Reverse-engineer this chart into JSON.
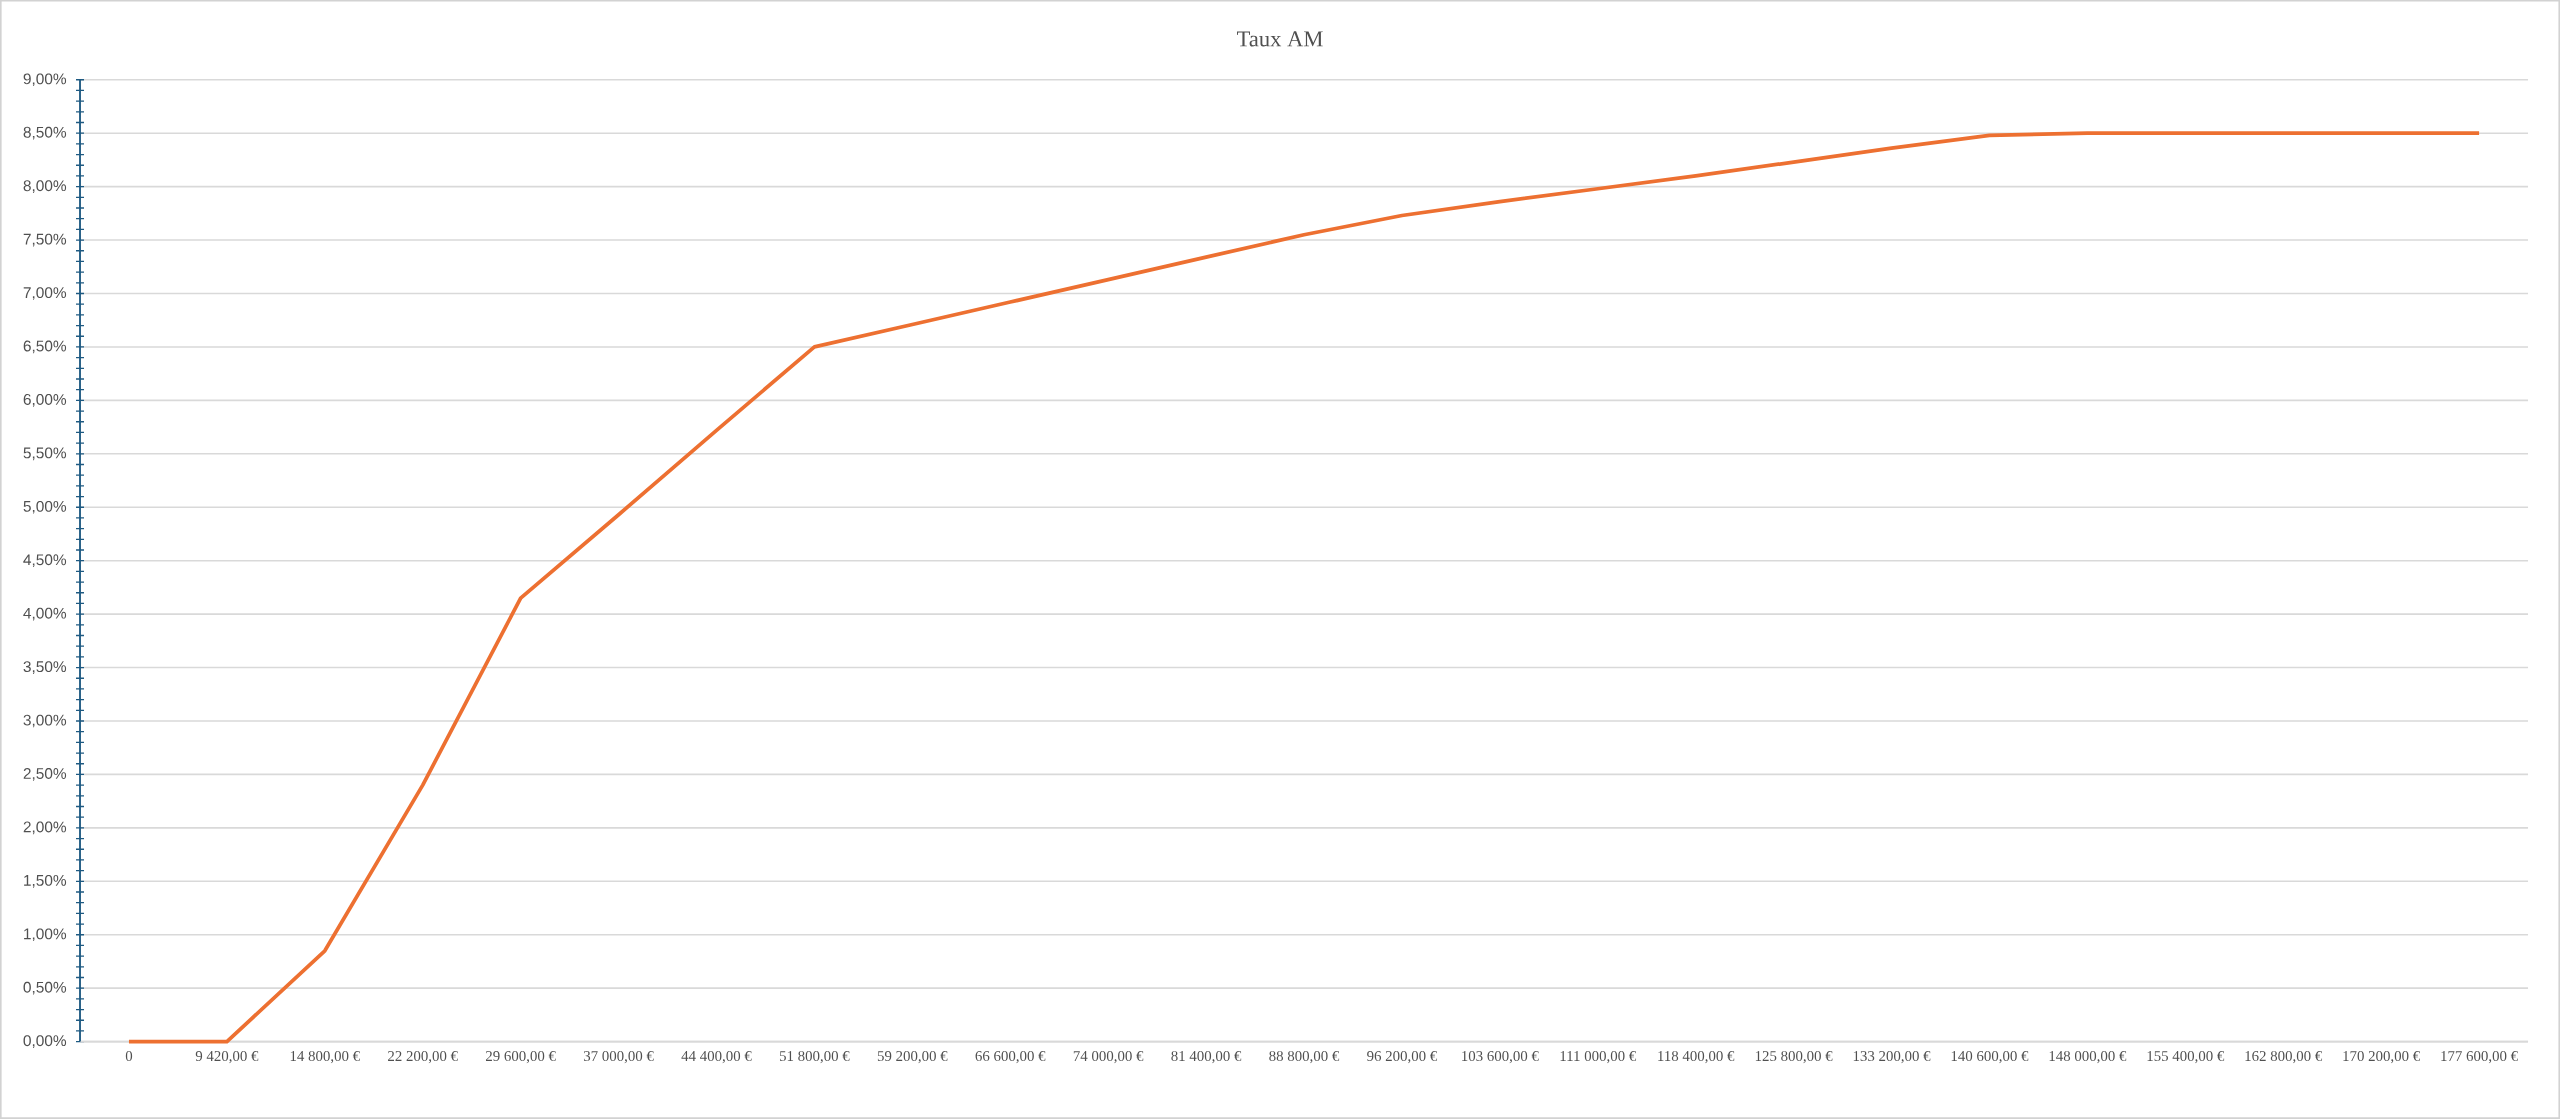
{
  "chart_data": {
    "type": "line",
    "title": "Taux AM",
    "categories": [
      "0",
      "9 420,00 €",
      "14 800,00 €",
      "22 200,00 €",
      "29 600,00 €",
      "37 000,00 €",
      "44 400,00 €",
      "51 800,00 €",
      "59 200,00 €",
      "66 600,00 €",
      "74 000,00 €",
      "81 400,00 €",
      "88 800,00 €",
      "96 200,00 €",
      "103 600,00 €",
      "111 000,00 €",
      "118 400,00 €",
      "125 800,00 €",
      "133 200,00 €",
      "140 600,00 €",
      "148 000,00 €",
      "155 400,00 €",
      "162 800,00 €",
      "170 200,00 €",
      "177 600,00 €"
    ],
    "series": [
      {
        "color": "#ed7031",
        "values": [
          0,
          0,
          0.85,
          2.4,
          4.15,
          4.93,
          5.72,
          6.5,
          6.71,
          6.92,
          7.13,
          7.34,
          7.55,
          7.73,
          7.86,
          7.98,
          8.1,
          8.23,
          8.36,
          8.48,
          8.5,
          8.5,
          8.5,
          8.5,
          8.5
        ]
      }
    ],
    "ylim": [
      0,
      9
    ],
    "yticks": [
      {
        "value": 0,
        "label": "0,00%"
      },
      {
        "value": 0.5,
        "label": "0,50%"
      },
      {
        "value": 1,
        "label": "1,00%"
      },
      {
        "value": 1.5,
        "label": "1,50%"
      },
      {
        "value": 2,
        "label": "2,00%"
      },
      {
        "value": 2.5,
        "label": "2,50%"
      },
      {
        "value": 3,
        "label": "3,00%"
      },
      {
        "value": 3.5,
        "label": "3,50%"
      },
      {
        "value": 4,
        "label": "4,00%"
      },
      {
        "value": 4.5,
        "label": "4,50%"
      },
      {
        "value": 5,
        "label": "5,00%"
      },
      {
        "value": 5.5,
        "label": "5,50%"
      },
      {
        "value": 6,
        "label": "6,00%"
      },
      {
        "value": 6.5,
        "label": "6,50%"
      },
      {
        "value": 7,
        "label": "7,00%"
      },
      {
        "value": 7.5,
        "label": "7,50%"
      },
      {
        "value": 8,
        "label": "8,00%"
      },
      {
        "value": 8.5,
        "label": "8,50%"
      },
      {
        "value": 9,
        "label": "9,00%"
      }
    ],
    "grid": "y"
  }
}
